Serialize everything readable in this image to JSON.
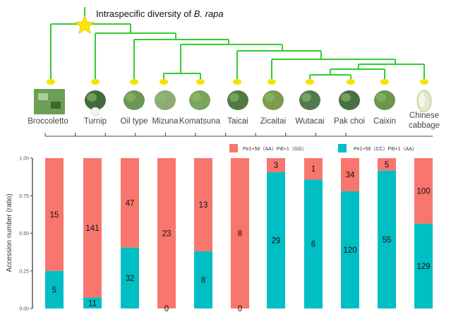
{
  "header": {
    "title_prefix": "Intraspecific diversity of ",
    "title_italic": "B. rapa"
  },
  "tree": {
    "leaves": [
      "Broccoletto",
      "Turnip",
      "Oil type",
      "Mizuna",
      "Komatsuna",
      "Taicai",
      "Zicaitai",
      "Wutacai",
      "Pak choi",
      "Caixin",
      "Chinese cabbage"
    ],
    "leaf_label_lines": [
      [
        "Broccoletto"
      ],
      [
        "Turnip"
      ],
      [
        "Oil type"
      ],
      [
        "Mizuna"
      ],
      [
        "Komatsuna"
      ],
      [
        "Taicai"
      ],
      [
        "Zicaitai"
      ],
      [
        "Wutacai"
      ],
      [
        "Pak choi"
      ],
      [
        "Caixin"
      ],
      [
        "Chinese",
        "cabbage"
      ]
    ],
    "topology": "(Broccoletto,(Turnip,(Oil type,((Mizuna,Komatsuna),(Taicai,(Zicaitai,(((Wutacai,Pak choi),Caixin),Chinese cabbage)))))))",
    "line_color": "#33cc33",
    "node_color": "#f5e400",
    "root_marker": "star"
  },
  "chart_data": {
    "type": "bar",
    "stacked": true,
    "normalized": true,
    "title": "",
    "xlabel": "",
    "ylabel": "Accession number (ratio)",
    "ylim": [
      0,
      1
    ],
    "yticks": [
      "0.00",
      "0.25",
      "0.50",
      "0.75",
      "1.00"
    ],
    "categories": [
      "Broccoletto",
      "Turnip",
      "Oil type",
      "Mizuna",
      "Komatsuna",
      "Taicai",
      "Zicaitai",
      "Wutacai",
      "Pak choi",
      "Caixin",
      "Chinese cabbage"
    ],
    "series": [
      {
        "name": "Pe1+58（AA）Pi6+1（GG）",
        "color": "#f8766d",
        "values": [
          15,
          141,
          47,
          23,
          13,
          8,
          3,
          1,
          34,
          5,
          100
        ]
      },
      {
        "name": "Pe1+58（CC）Pi6+1（AA）",
        "color": "#00bfc4",
        "values": [
          5,
          11,
          32,
          0,
          8,
          0,
          29,
          6,
          120,
          55,
          129
        ]
      }
    ],
    "legend": {
      "placement": "top-right",
      "orientation": "horizontal"
    },
    "grid": false
  }
}
